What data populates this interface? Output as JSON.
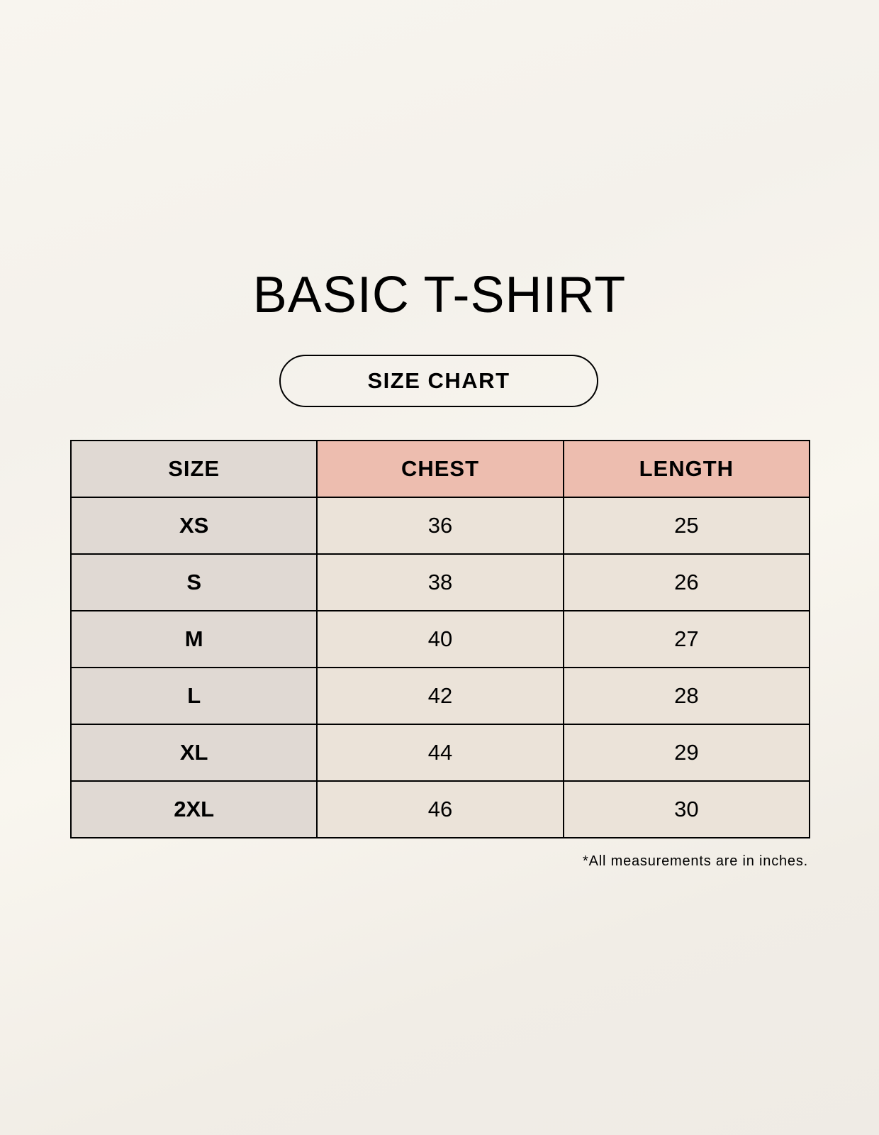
{
  "title": "BASIC T-SHIRT",
  "subtitle": "SIZE CHART",
  "table": {
    "headers": [
      "SIZE",
      "CHEST",
      "LENGTH"
    ],
    "rows": [
      [
        "XS",
        "36",
        "25"
      ],
      [
        "S",
        "38",
        "26"
      ],
      [
        "M",
        "40",
        "27"
      ],
      [
        "L",
        "42",
        "28"
      ],
      [
        "XL",
        "44",
        "29"
      ],
      [
        "2XL",
        "46",
        "30"
      ]
    ]
  },
  "note": "*All measurements are in inches.",
  "colors": {
    "size_column": "#e0d9d3",
    "header_accent": "#edbdaf",
    "value_cells": "#ebe3d9"
  }
}
